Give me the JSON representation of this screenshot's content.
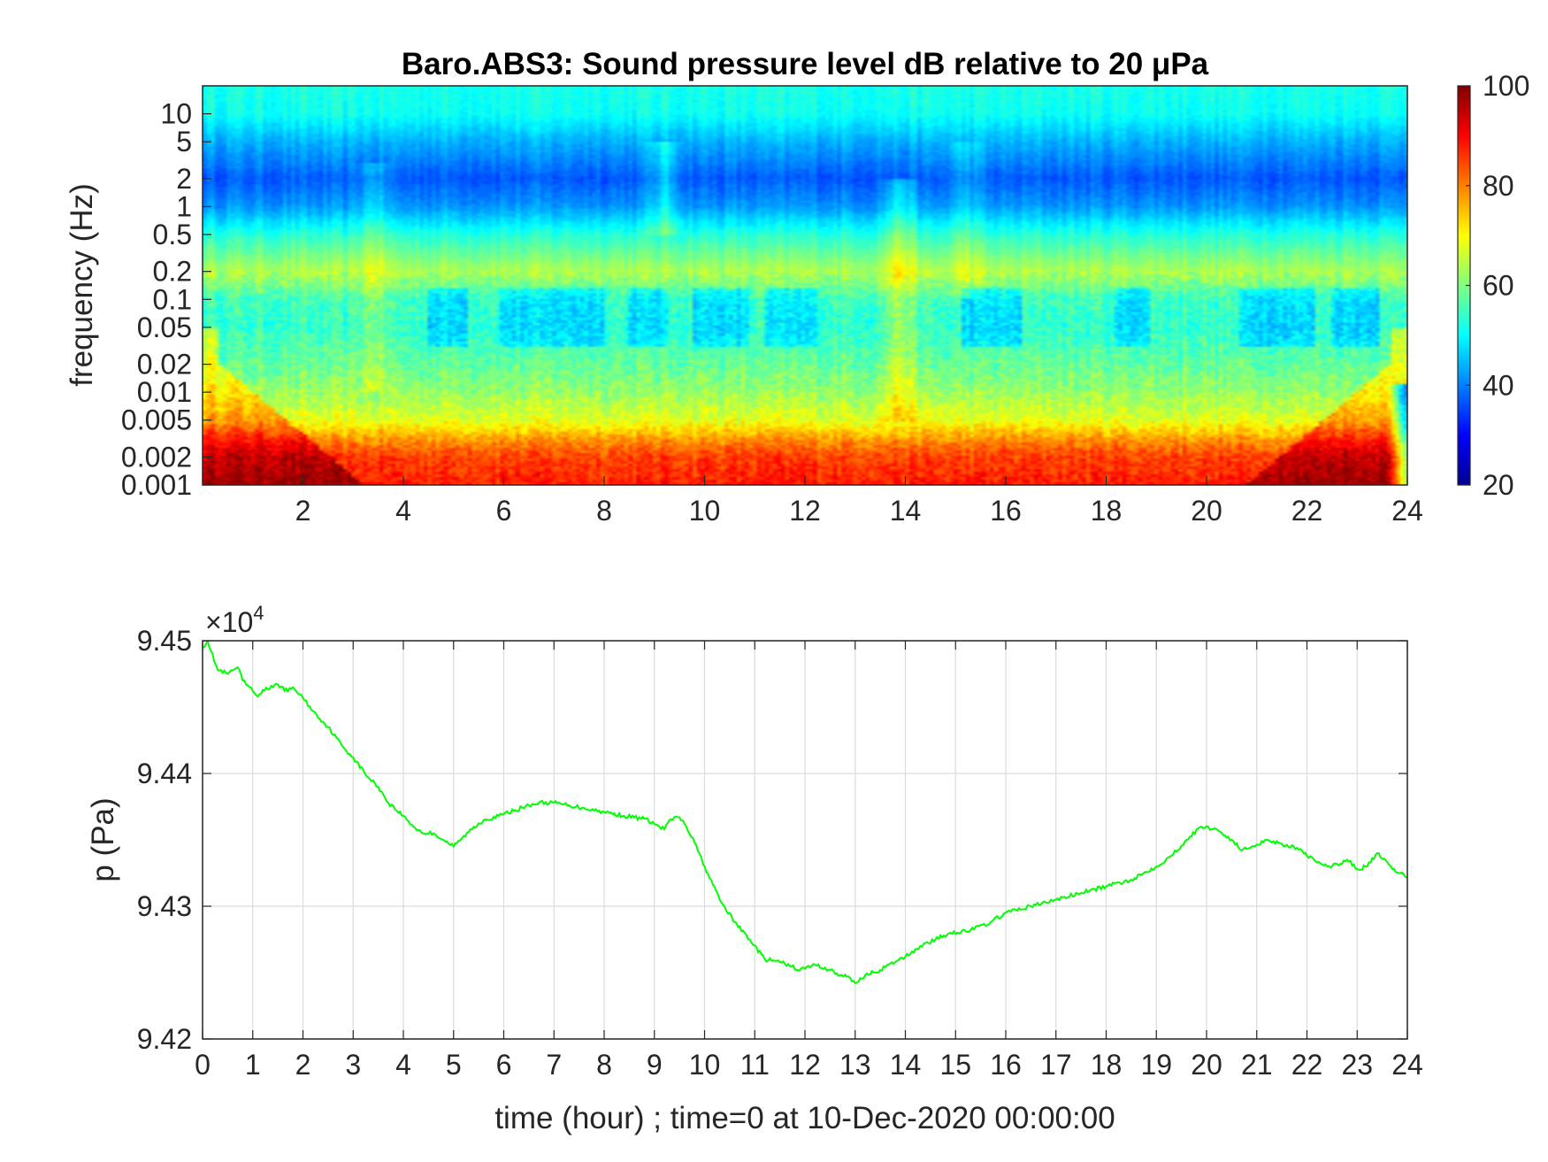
{
  "chart_data": [
    {
      "type": "heatmap",
      "title": "Baro.ABS3: Sound pressure level dB relative to 20 μPa",
      "xlabel": "",
      "ylabel": "frequency (Hz)",
      "xlim": [
        0,
        24
      ],
      "ylim": [
        0.001,
        20
      ],
      "y_scale": "log",
      "x_ticks": [
        2,
        4,
        6,
        8,
        10,
        12,
        14,
        16,
        18,
        20,
        22,
        24
      ],
      "y_ticks": [
        0.001,
        0.002,
        0.005,
        0.01,
        0.02,
        0.05,
        0.1,
        0.2,
        0.5,
        1,
        2,
        5,
        10
      ],
      "y_tick_labels": [
        "0.001",
        "0.002",
        "0.005",
        "0.01",
        "0.02",
        "0.05",
        "0.1",
        "0.2",
        "0.5",
        "1",
        "2",
        "5",
        "10"
      ],
      "colormap": "jet",
      "colorbar": {
        "clim": [
          20,
          100
        ],
        "ticks": [
          20,
          40,
          60,
          80,
          100
        ]
      },
      "spectrum_profile": [
        {
          "freq": 0.001,
          "db": 88
        },
        {
          "freq": 0.002,
          "db": 85
        },
        {
          "freq": 0.003,
          "db": 79
        },
        {
          "freq": 0.005,
          "db": 68
        },
        {
          "freq": 0.01,
          "db": 62
        },
        {
          "freq": 0.02,
          "db": 58
        },
        {
          "freq": 0.05,
          "db": 54
        },
        {
          "freq": 0.1,
          "db": 55
        },
        {
          "freq": 0.2,
          "db": 64
        },
        {
          "freq": 0.5,
          "db": 53
        },
        {
          "freq": 1,
          "db": 42
        },
        {
          "freq": 2,
          "db": 37
        },
        {
          "freq": 5,
          "db": 44
        },
        {
          "freq": 10,
          "db": 51
        },
        {
          "freq": 20,
          "db": 52
        }
      ],
      "quiet_bands": [
        [
          4.5,
          5.3
        ],
        [
          5.9,
          8.0
        ],
        [
          8.5,
          9.3
        ],
        [
          9.8,
          10.9
        ],
        [
          11.2,
          12.2
        ],
        [
          15.1,
          16.3
        ],
        [
          18.2,
          18.9
        ],
        [
          20.6,
          22.2
        ],
        [
          22.5,
          23.4
        ]
      ],
      "bright_streaks": [
        {
          "t": 13.9,
          "freq_low": 0.005,
          "freq_high": 2,
          "db_boost": 9
        },
        {
          "t": 3.4,
          "freq_low": 0.01,
          "freq_high": 3,
          "db_boost": 6
        },
        {
          "t": 9.2,
          "freq_low": 0.5,
          "freq_high": 5,
          "db_boost": 8
        },
        {
          "t": 15.2,
          "freq_low": 0.1,
          "freq_high": 5,
          "db_boost": 5
        }
      ]
    },
    {
      "type": "line",
      "title": "",
      "xlabel": "time (hour) ; time=0 at 10-Dec-2020 00:00:00",
      "ylabel": "p (Pa)",
      "xlim": [
        0,
        24
      ],
      "ylim": [
        94200,
        94500
      ],
      "y_multiplier_label": "×10",
      "y_multiplier_exponent": "4",
      "x_ticks": [
        0,
        1,
        2,
        3,
        4,
        5,
        6,
        7,
        8,
        9,
        10,
        11,
        12,
        13,
        14,
        15,
        16,
        17,
        18,
        19,
        20,
        21,
        22,
        23,
        24
      ],
      "y_ticks": [
        94200,
        94300,
        94400,
        94500
      ],
      "y_tick_labels": [
        "9.42",
        "9.43",
        "9.44",
        "9.45"
      ],
      "grid": true,
      "series": [
        {
          "color": "#00ff00",
          "x": [
            0,
            0.1,
            0.3,
            0.5,
            0.7,
            0.8,
            1.0,
            1.1,
            1.2,
            1.4,
            1.5,
            1.7,
            1.8,
            2.0,
            2.2,
            2.5,
            2.8,
            3.0,
            3.3,
            3.5,
            3.7,
            4.0,
            4.2,
            4.4,
            4.6,
            4.8,
            5.0,
            5.3,
            5.6,
            5.9,
            6.2,
            6.5,
            6.7,
            7.0,
            7.3,
            7.6,
            8.0,
            8.4,
            8.8,
            9.0,
            9.1,
            9.2,
            9.3,
            9.5,
            9.6,
            9.8,
            10.0,
            10.3,
            10.6,
            10.9,
            11.2,
            11.5,
            11.7,
            11.9,
            12.2,
            12.5,
            12.7,
            12.9,
            13.0,
            13.2,
            13.5,
            13.8,
            14.0,
            14.3,
            14.6,
            14.9,
            15.3,
            15.7,
            16.0,
            16.5,
            17.0,
            17.5,
            18.0,
            18.5,
            19.0,
            19.3,
            19.6,
            19.9,
            20.2,
            20.5,
            20.7,
            20.9,
            21.2,
            21.5,
            21.8,
            22.0,
            22.2,
            22.5,
            22.8,
            23.0,
            23.2,
            23.4,
            23.7,
            24.0
          ],
          "y": [
            94495,
            94500,
            94478,
            94475,
            94480,
            94470,
            94462,
            94458,
            94463,
            94465,
            94467,
            94462,
            94465,
            94457,
            94447,
            94435,
            94420,
            94412,
            94397,
            94390,
            94378,
            94368,
            94360,
            94355,
            94355,
            94350,
            94345,
            94356,
            94365,
            94368,
            94372,
            94376,
            94378,
            94378,
            94376,
            94374,
            94371,
            94368,
            94366,
            94362,
            94360,
            94358,
            94365,
            94367,
            94362,
            94348,
            94330,
            94305,
            94288,
            94275,
            94260,
            94258,
            94255,
            94252,
            94256,
            94252,
            94248,
            94246,
            94242,
            94248,
            94252,
            94258,
            94262,
            94270,
            94275,
            94280,
            94282,
            94288,
            94295,
            94300,
            94305,
            94310,
            94315,
            94320,
            94330,
            94338,
            94350,
            94360,
            94358,
            94350,
            94342,
            94345,
            94350,
            94347,
            94344,
            94338,
            94333,
            94330,
            94335,
            94328,
            94330,
            94340,
            94328,
            94322
          ]
        }
      ]
    }
  ]
}
